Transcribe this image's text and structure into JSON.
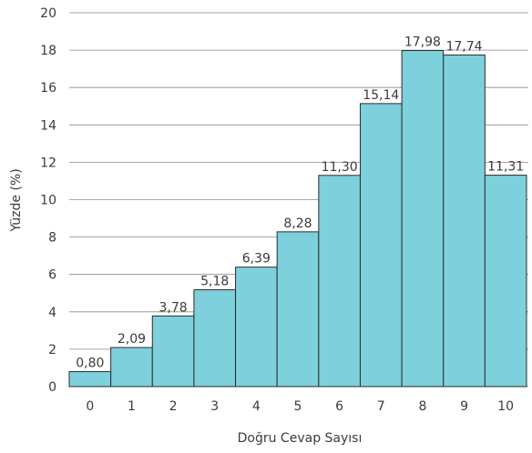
{
  "chart_data": {
    "type": "bar",
    "title": "",
    "xlabel": "Doğru Cevap Sayısı",
    "ylabel": "Yüzde (%)",
    "categories": [
      "0",
      "1",
      "2",
      "3",
      "4",
      "5",
      "6",
      "7",
      "8",
      "9",
      "10"
    ],
    "values": [
      0.8,
      2.09,
      3.78,
      5.18,
      6.39,
      8.28,
      11.3,
      15.14,
      17.98,
      17.74,
      11.31
    ],
    "data_labels": [
      "0,80",
      "2,09",
      "3,78",
      "5,18",
      "6,39",
      "8,28",
      "11,30",
      "15,14",
      "17,98",
      "17,74",
      "11,31"
    ],
    "ylim": [
      0,
      20
    ],
    "yticks": [
      "0",
      "2",
      "4",
      "6",
      "8",
      "10",
      "12",
      "14",
      "16",
      "18",
      "20"
    ],
    "grid": true,
    "colors": {
      "bar_fill": "#7dd0dc",
      "bar_stroke": "#2c2c2c",
      "grid": "#8c8c8c",
      "text": "#3b3b3b"
    }
  }
}
